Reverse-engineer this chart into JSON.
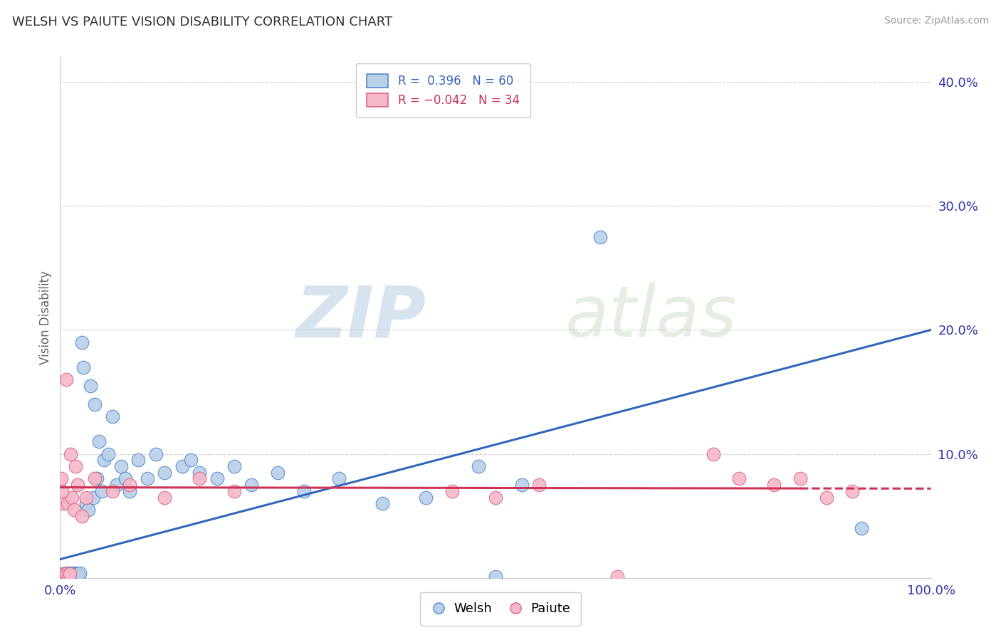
{
  "title": "WELSH VS PAIUTE VISION DISABILITY CORRELATION CHART",
  "source": "Source: ZipAtlas.com",
  "ylabel": "Vision Disability",
  "xlabel": "",
  "xlim": [
    0.0,
    1.0
  ],
  "ylim": [
    0.0,
    0.42
  ],
  "xticks": [
    0.0,
    0.1,
    0.2,
    0.3,
    0.4,
    0.5,
    0.6,
    0.7,
    0.8,
    0.9,
    1.0
  ],
  "xticklabels": [
    "0.0%",
    "",
    "",
    "",
    "",
    "",
    "",
    "",
    "",
    "",
    "100.0%"
  ],
  "yticks": [
    0.0,
    0.1,
    0.2,
    0.3,
    0.4
  ],
  "yticklabels": [
    "",
    "10.0%",
    "20.0%",
    "30.0%",
    "40.0%"
  ],
  "grid_color": "#d0d0d0",
  "background": "#ffffff",
  "welsh_fill": "#b8d0e8",
  "paiute_fill": "#f5b8c8",
  "welsh_edge": "#5588cc",
  "paiute_edge": "#dd6688",
  "welsh_line_color": "#3366bb",
  "paiute_line_color": "#cc3355",
  "welsh_R": 0.396,
  "welsh_N": 60,
  "paiute_R": -0.042,
  "paiute_N": 34,
  "welsh_x": [
    0.001,
    0.002,
    0.003,
    0.004,
    0.005,
    0.006,
    0.007,
    0.008,
    0.009,
    0.01,
    0.011,
    0.012,
    0.013,
    0.014,
    0.015,
    0.016,
    0.017,
    0.018,
    0.019,
    0.02,
    0.021,
    0.022,
    0.023,
    0.025,
    0.027,
    0.03,
    0.032,
    0.035,
    0.038,
    0.04,
    0.042,
    0.045,
    0.048,
    0.05,
    0.055,
    0.06,
    0.065,
    0.07,
    0.075,
    0.08,
    0.09,
    0.1,
    0.11,
    0.12,
    0.14,
    0.15,
    0.16,
    0.18,
    0.2,
    0.22,
    0.25,
    0.28,
    0.32,
    0.37,
    0.42,
    0.48,
    0.53,
    0.62,
    0.92,
    0.5
  ],
  "welsh_y": [
    0.002,
    0.001,
    0.003,
    0.001,
    0.002,
    0.003,
    0.002,
    0.004,
    0.001,
    0.002,
    0.003,
    0.001,
    0.004,
    0.002,
    0.003,
    0.001,
    0.004,
    0.003,
    0.002,
    0.001,
    0.003,
    0.002,
    0.004,
    0.19,
    0.17,
    0.06,
    0.055,
    0.155,
    0.065,
    0.14,
    0.08,
    0.11,
    0.07,
    0.095,
    0.1,
    0.13,
    0.075,
    0.09,
    0.08,
    0.07,
    0.095,
    0.08,
    0.1,
    0.085,
    0.09,
    0.095,
    0.085,
    0.08,
    0.09,
    0.075,
    0.085,
    0.07,
    0.08,
    0.06,
    0.065,
    0.09,
    0.075,
    0.275,
    0.04,
    0.001
  ],
  "paiute_x": [
    0.001,
    0.002,
    0.003,
    0.005,
    0.006,
    0.007,
    0.008,
    0.009,
    0.01,
    0.011,
    0.012,
    0.014,
    0.016,
    0.018,
    0.02,
    0.025,
    0.03,
    0.04,
    0.06,
    0.08,
    0.12,
    0.16,
    0.2,
    0.45,
    0.5,
    0.55,
    0.64,
    0.75,
    0.78,
    0.82,
    0.85,
    0.88,
    0.91,
    0.002
  ],
  "paiute_y": [
    0.08,
    0.06,
    0.002,
    0.001,
    0.003,
    0.16,
    0.002,
    0.06,
    0.001,
    0.003,
    0.1,
    0.065,
    0.055,
    0.09,
    0.075,
    0.05,
    0.065,
    0.08,
    0.07,
    0.075,
    0.065,
    0.08,
    0.07,
    0.07,
    0.065,
    0.075,
    0.001,
    0.1,
    0.08,
    0.075,
    0.08,
    0.065,
    0.07,
    0.07
  ],
  "watermark_zip": "ZIP",
  "watermark_atlas": "atlas"
}
